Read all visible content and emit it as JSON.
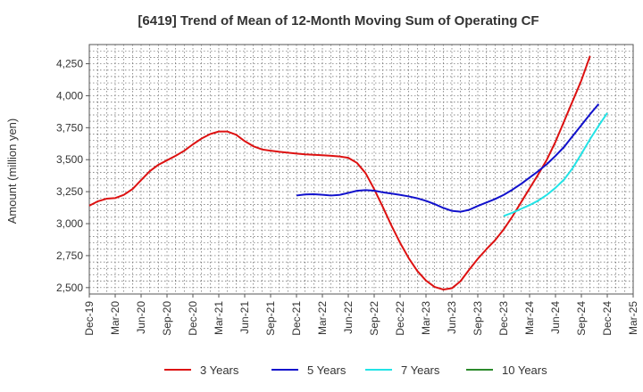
{
  "chart_data": {
    "type": "line",
    "title": "[6419]  Trend of Mean of 12-Month Moving Sum of Operating CF",
    "xlabel": "",
    "ylabel": "Amount (million yen)",
    "ylim": [
      2450,
      4400
    ],
    "yticks": [
      2500,
      2750,
      3000,
      3250,
      3500,
      3750,
      4000,
      4250
    ],
    "ytick_labels": [
      "2,500",
      "2,750",
      "3,000",
      "3,250",
      "3,500",
      "3,750",
      "4,000",
      "4,250"
    ],
    "xtick_labels": [
      "Dec-19",
      "Mar-20",
      "Jun-20",
      "Sep-20",
      "Dec-20",
      "Mar-21",
      "Jun-21",
      "Sep-21",
      "Dec-21",
      "Mar-22",
      "Jun-22",
      "Sep-22",
      "Dec-22",
      "Mar-23",
      "Jun-23",
      "Sep-23",
      "Dec-23",
      "Mar-24",
      "Jun-24",
      "Sep-24",
      "Dec-24",
      "Mar-25"
    ],
    "x_months_start": "Dec-19",
    "grid": true,
    "legend_position": "bottom",
    "series": [
      {
        "name": "3 Years",
        "color": "#dd1111",
        "start_index": 0,
        "values": [
          3140,
          3175,
          3195,
          3200,
          3225,
          3270,
          3340,
          3410,
          3460,
          3495,
          3530,
          3570,
          3620,
          3665,
          3700,
          3720,
          3720,
          3695,
          3645,
          3605,
          3580,
          3570,
          3562,
          3555,
          3548,
          3542,
          3538,
          3535,
          3530,
          3525,
          3515,
          3475,
          3395,
          3270,
          3130,
          2985,
          2850,
          2730,
          2630,
          2555,
          2505,
          2485,
          2495,
          2550,
          2640,
          2725,
          2800,
          2870,
          2955,
          3055,
          3165,
          3275,
          3385,
          3500,
          3640,
          3800,
          3960,
          4120,
          4310
        ]
      },
      {
        "name": "5 Years",
        "color": "#1111cc",
        "start_index": 24,
        "values": [
          3220,
          3228,
          3230,
          3226,
          3220,
          3225,
          3240,
          3257,
          3262,
          3258,
          3245,
          3235,
          3225,
          3213,
          3198,
          3178,
          3153,
          3123,
          3100,
          3093,
          3108,
          3138,
          3165,
          3192,
          3225,
          3265,
          3310,
          3360,
          3410,
          3465,
          3530,
          3600,
          3685,
          3770,
          3855,
          3935
        ]
      },
      {
        "name": "7 Years",
        "color": "#22e3e6",
        "start_index": 48,
        "values": [
          3060,
          3085,
          3115,
          3145,
          3180,
          3225,
          3280,
          3345,
          3435,
          3545,
          3660,
          3765,
          3865
        ]
      },
      {
        "name": "10 Years",
        "color": "#2b8a2b",
        "start_index": 0,
        "values": []
      }
    ]
  }
}
